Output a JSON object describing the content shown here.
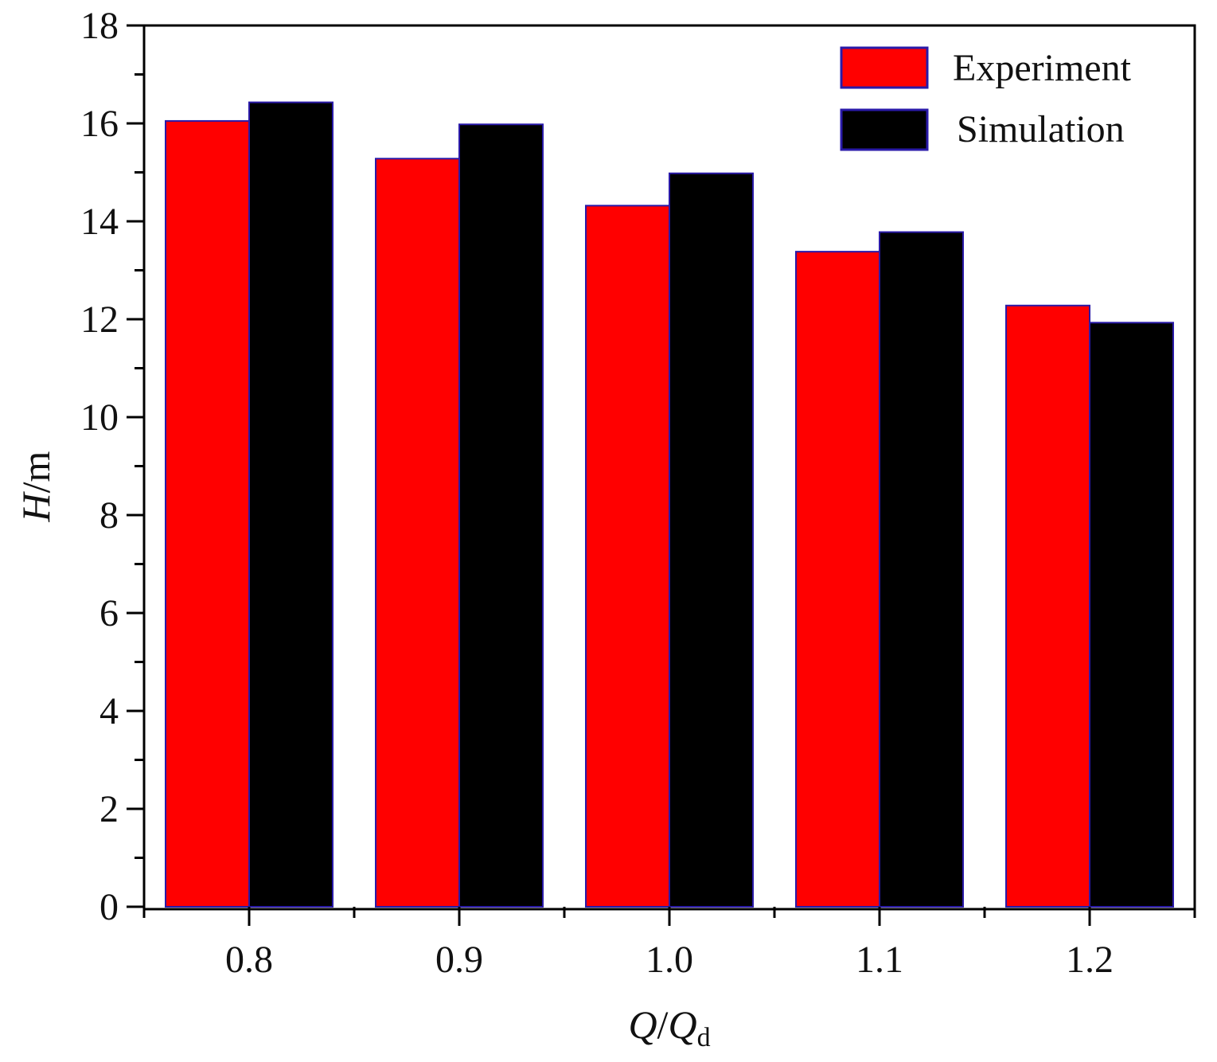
{
  "chart_data": {
    "type": "bar",
    "title": "",
    "categories": [
      "0.8",
      "0.9",
      "1.0",
      "1.1",
      "1.2"
    ],
    "series": [
      {
        "name": "Experiment",
        "values": [
          16.05,
          15.28,
          14.32,
          13.38,
          12.28
        ],
        "color": "#ff0000"
      },
      {
        "name": "Simulation",
        "values": [
          16.43,
          15.98,
          14.98,
          13.78,
          11.93
        ],
        "color": "#000000"
      }
    ],
    "xlabel": {
      "italic_main": "Q",
      "slash": "/",
      "italic_sub_base": "Q",
      "subscript": "d"
    },
    "ylabel": {
      "italic_main": "H",
      "rest": "/m"
    },
    "ylim": [
      0,
      18
    ],
    "yticks": [
      "0",
      "2",
      "4",
      "6",
      "8",
      "10",
      "12",
      "14",
      "16",
      "18"
    ],
    "legend_position": "top-right",
    "bar_edge_color": "#2a1aa8"
  }
}
